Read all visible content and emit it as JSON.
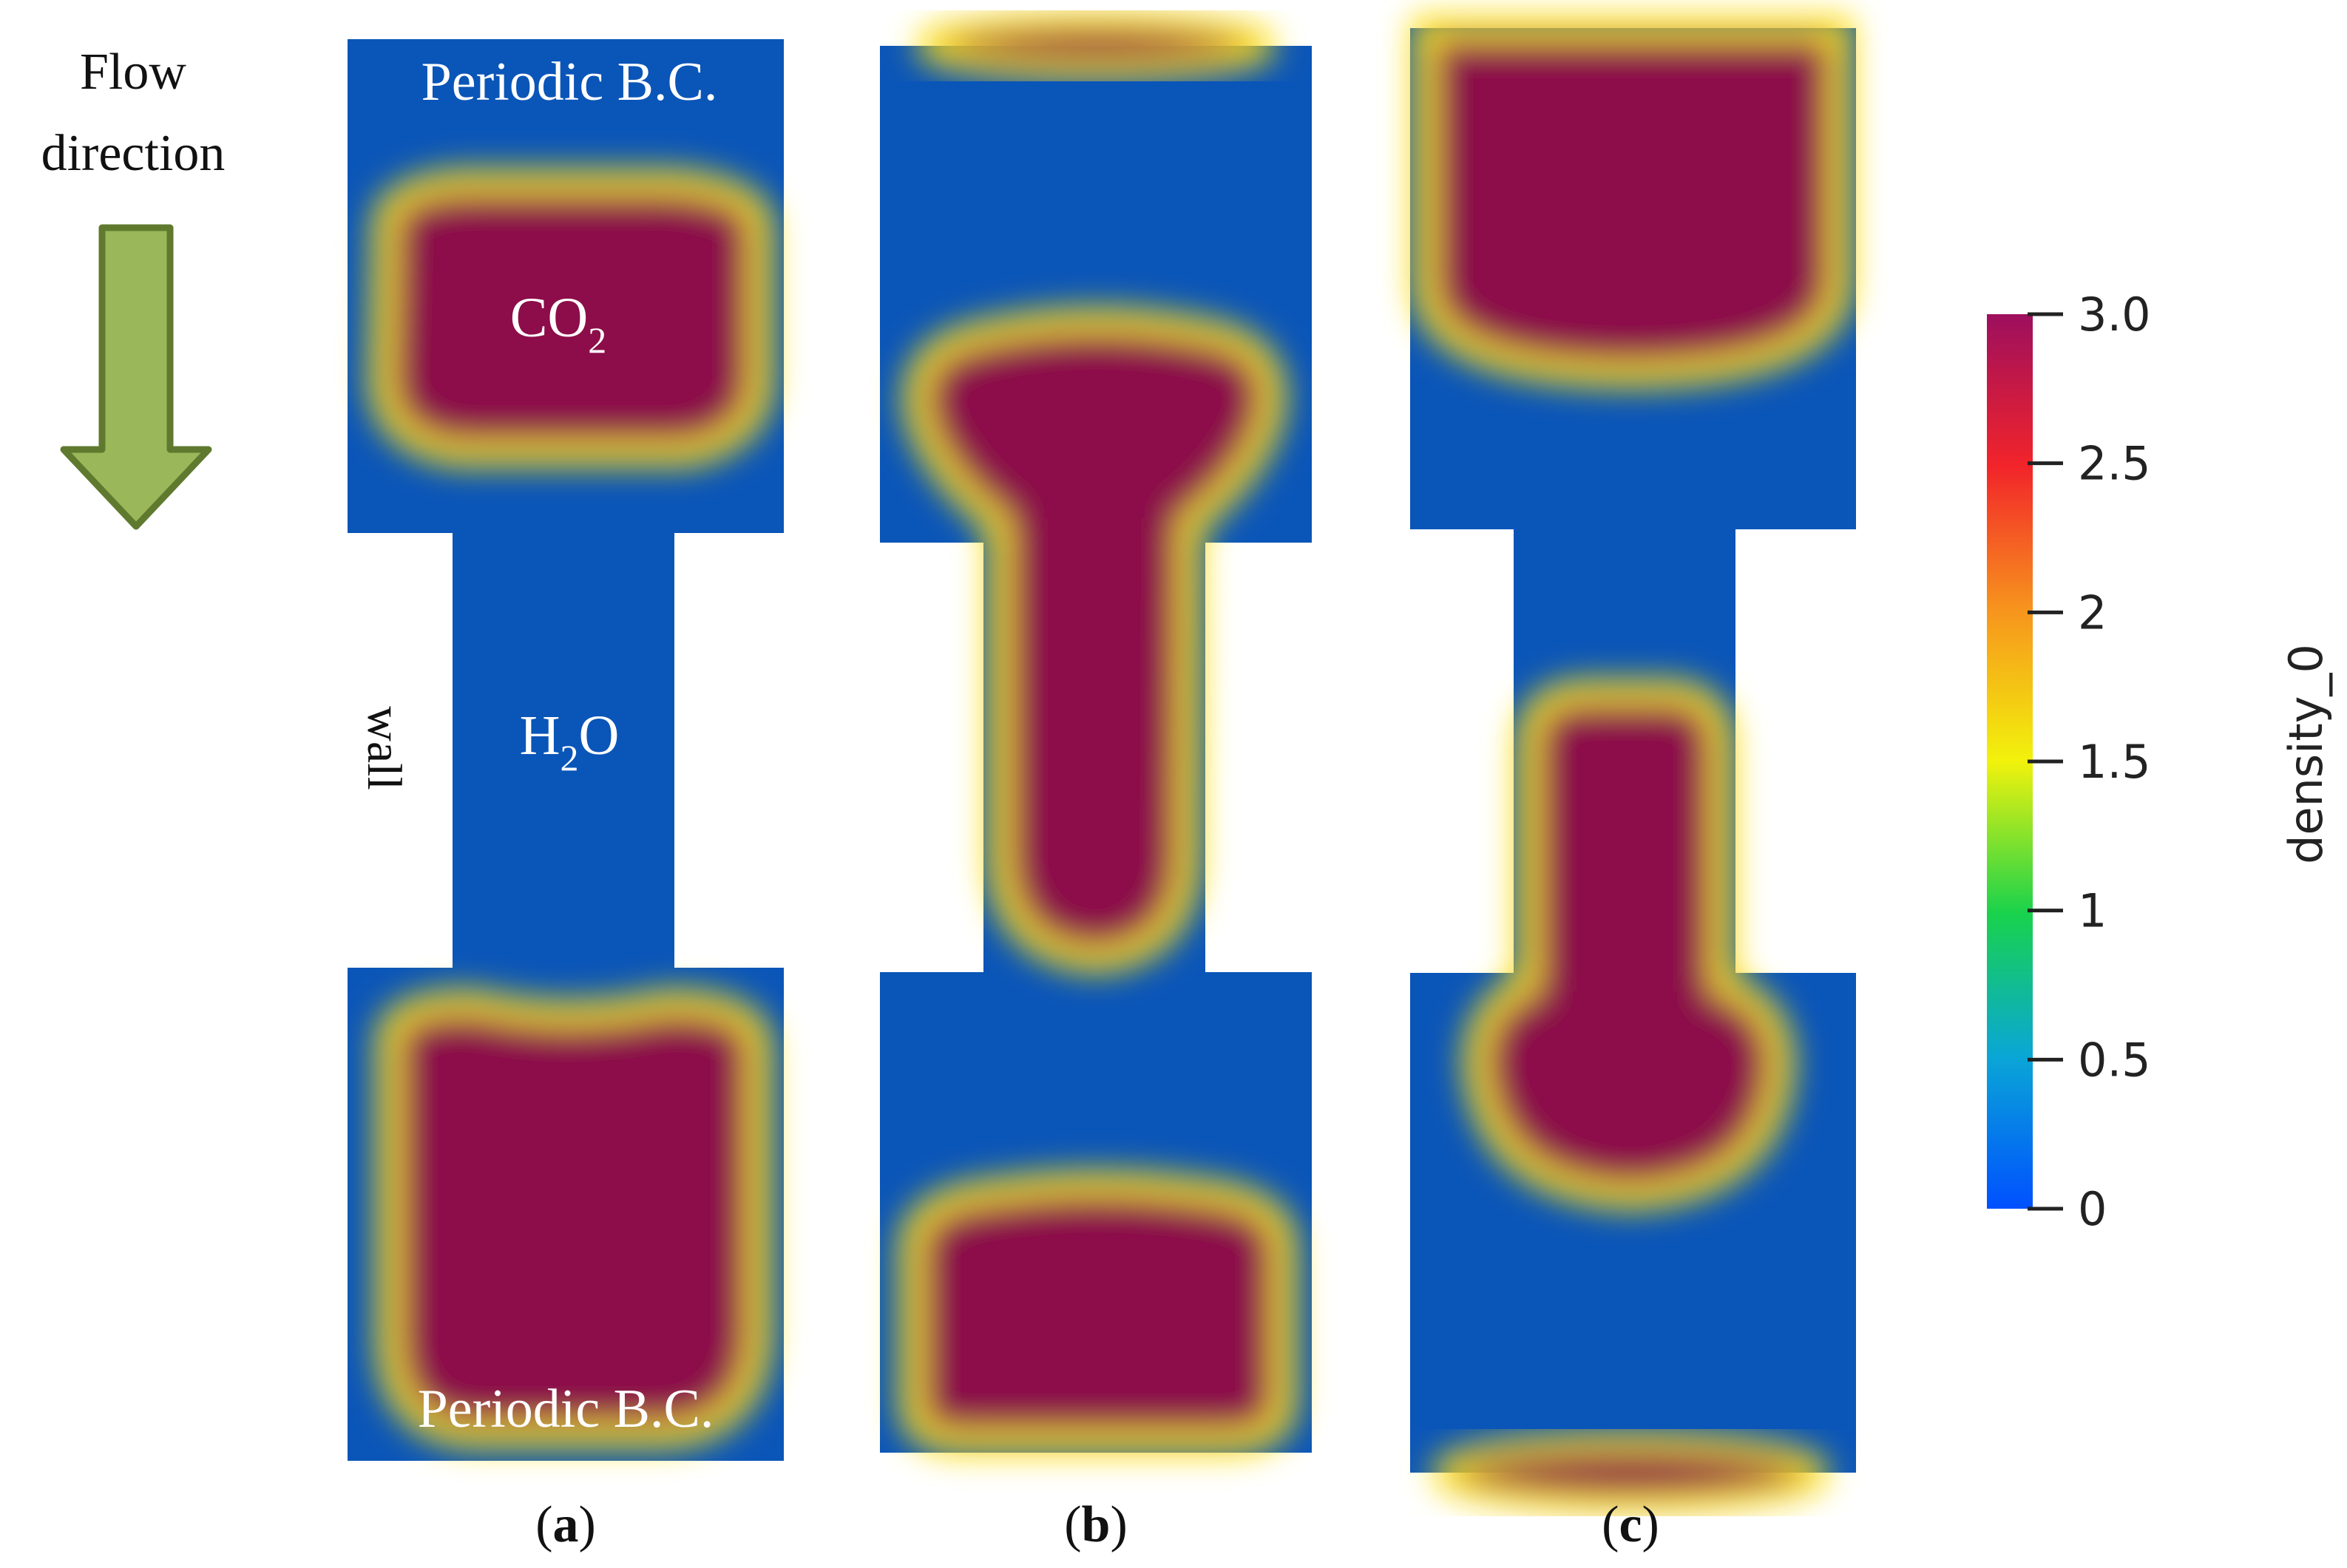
{
  "flow_label": {
    "line1": "Flow",
    "line2": "direction"
  },
  "panel_a": {
    "top_label": "Periodic B.C.",
    "bottom_label": "Periodic B.C.",
    "co2": {
      "main": "CO",
      "sub": "2"
    },
    "h2o": {
      "h": "H",
      "sub": "2",
      "o": "O"
    },
    "wall": "wall"
  },
  "panel_labels": {
    "a": {
      "open": "(",
      "letter": "a",
      "close": ")"
    },
    "b": {
      "open": "(",
      "letter": "b",
      "close": ")"
    },
    "c": {
      "open": "(",
      "letter": "c",
      "close": ")"
    }
  },
  "colorbar": {
    "title": "density_0",
    "ticks": [
      "3.0",
      "2.5",
      "2",
      "1.5",
      "1",
      "0.5",
      "0"
    ],
    "colors": {
      "background_blue": "#0a55b8",
      "co2_red": "#8c0c4a",
      "arrow_green": "#9ab85a",
      "arrow_stroke": "#5f7a2e"
    }
  }
}
